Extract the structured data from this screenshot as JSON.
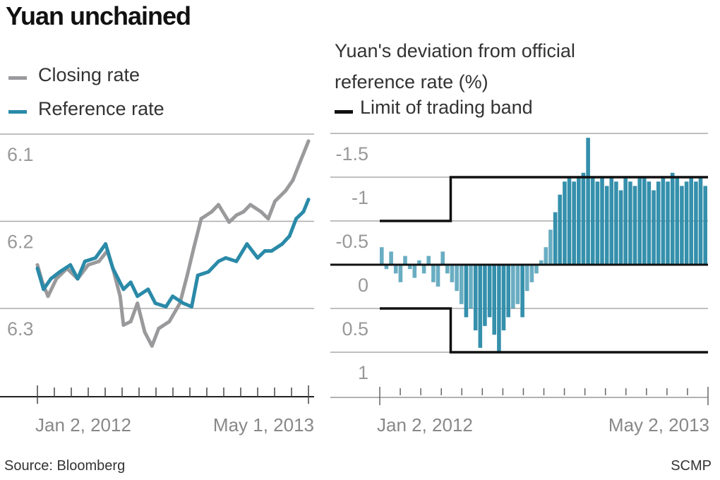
{
  "title": "Yuan unchained",
  "source": "Source: Bloomberg",
  "credit": "SCMP",
  "colors": {
    "closing": "#9a9a9c",
    "reference": "#2a8aa8",
    "band": "#111111",
    "grid": "#aaaaaa"
  },
  "chart_data": [
    {
      "type": "line",
      "legend": [
        "Closing rate",
        "Reference rate"
      ],
      "legend_placement": "top-left",
      "ylim": [
        6.4,
        6.1
      ],
      "y_inverted": true,
      "yticks": [
        "6.1",
        "6.2",
        "6.3"
      ],
      "ytick_values": [
        6.1,
        6.2,
        6.3
      ],
      "xlabels": [
        "Jan 2, 2012",
        "May 1, 2013"
      ],
      "x_range": [
        "2012-01-02",
        "2013-05-01"
      ],
      "grid": true,
      "series": [
        {
          "name": "Closing rate",
          "x": [
            "2012-01-02",
            "2012-01-11",
            "2012-01-21",
            "2012-02-05",
            "2012-02-24",
            "2012-03-14",
            "2012-04-02",
            "2012-04-21",
            "2012-05-06",
            "2012-05-16",
            "2012-05-29",
            "2012-06-04",
            "2012-06-17",
            "2012-06-29",
            "2012-07-12",
            "2012-07-25",
            "2012-08-06",
            "2012-08-25",
            "2012-09-13",
            "2012-09-26",
            "2012-10-08",
            "2012-10-21",
            "2012-11-09",
            "2012-11-21",
            "2012-12-10",
            "2012-12-23",
            "2013-01-05",
            "2013-01-17",
            "2013-02-05",
            "2013-02-18",
            "2013-03-02",
            "2013-03-21",
            "2013-04-03",
            "2013-04-16",
            "2013-05-01"
          ],
          "values": [
            6.25,
            6.27,
            6.286,
            6.266,
            6.254,
            6.266,
            6.25,
            6.246,
            6.234,
            6.254,
            6.286,
            6.319,
            6.315,
            6.294,
            6.327,
            6.343,
            6.323,
            6.315,
            6.294,
            6.262,
            6.23,
            6.197,
            6.189,
            6.181,
            6.201,
            6.193,
            6.189,
            6.181,
            6.189,
            6.197,
            6.177,
            6.165,
            6.153,
            6.132,
            6.108
          ]
        },
        {
          "name": "Reference rate",
          "x": [
            "2012-01-02",
            "2012-01-13",
            "2012-01-26",
            "2012-02-11",
            "2012-03-01",
            "2012-03-14",
            "2012-03-27",
            "2012-04-15",
            "2012-05-03",
            "2012-05-16",
            "2012-06-04",
            "2012-06-17",
            "2012-06-29",
            "2012-07-18",
            "2012-07-31",
            "2012-08-19",
            "2012-08-31",
            "2012-09-19",
            "2012-10-04",
            "2012-10-15",
            "2012-11-03",
            "2012-11-21",
            "2012-12-04",
            "2012-12-23",
            "2013-01-11",
            "2013-01-30",
            "2013-02-12",
            "2013-02-24",
            "2013-03-15",
            "2013-03-28",
            "2013-04-09",
            "2013-04-22",
            "2013-05-01"
          ],
          "values": [
            6.254,
            6.278,
            6.266,
            6.258,
            6.25,
            6.266,
            6.246,
            6.242,
            6.226,
            6.254,
            6.278,
            6.27,
            6.286,
            6.278,
            6.294,
            6.298,
            6.286,
            6.294,
            6.298,
            6.262,
            6.258,
            6.246,
            6.242,
            6.246,
            6.226,
            6.242,
            6.234,
            6.234,
            6.226,
            6.217,
            6.197,
            6.189,
            6.175
          ]
        }
      ]
    },
    {
      "type": "bar",
      "title": "Yuan's deviation from official reference rate (%)",
      "legend": [
        "Limit of trading band"
      ],
      "ylim": [
        1.25,
        -1.75
      ],
      "y_inverted": true,
      "yticks": [
        "-1.5",
        "-1",
        "-0.5",
        "0",
        "0.5",
        "1"
      ],
      "ytick_values": [
        -1.5,
        -1.0,
        -0.5,
        0,
        0.5,
        1.0
      ],
      "xlabels": [
        "Jan 2, 2012",
        "May 2, 2013"
      ],
      "x_range": [
        "2012-01-02",
        "2013-05-02"
      ],
      "frequency": "weekly",
      "grid": true,
      "deviation": [
        -0.2,
        0.05,
        -0.15,
        0.1,
        0.2,
        -0.1,
        0.05,
        0.15,
        -0.05,
        0.1,
        -0.1,
        0.2,
        0.25,
        -0.15,
        0.1,
        0.2,
        0.3,
        0.45,
        0.6,
        0.5,
        0.75,
        0.95,
        0.7,
        0.6,
        0.8,
        1.0,
        0.75,
        0.6,
        0.5,
        0.45,
        0.6,
        0.3,
        0.2,
        0.1,
        -0.05,
        -0.2,
        -0.4,
        -0.6,
        -0.8,
        -0.95,
        -1.0,
        -0.95,
        -1.0,
        -1.05,
        -1.45,
        -1.0,
        -0.95,
        -1.0,
        -0.9,
        -1.0,
        -0.95,
        -0.85,
        -1.0,
        -0.95,
        -0.9,
        -1.0,
        -1.0,
        -0.95,
        -0.85,
        -0.95,
        -1.0,
        -0.95,
        -1.05,
        -1.0,
        -0.9,
        -0.95,
        -1.0,
        -0.95,
        -1.0,
        -0.9
      ],
      "band": [
        {
          "from": "2012-01-02",
          "to": "2012-04-16",
          "limit": 0.5
        },
        {
          "from": "2012-04-16",
          "to": "2013-05-02",
          "limit": 1.0
        }
      ]
    }
  ]
}
